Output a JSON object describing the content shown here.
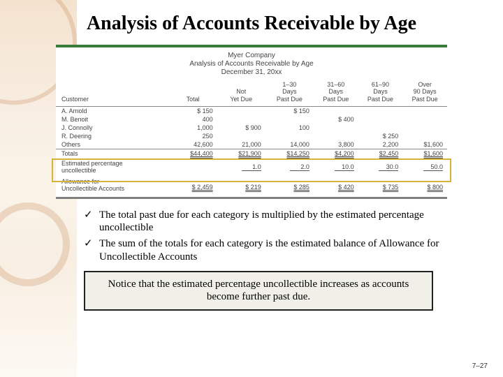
{
  "title": "Analysis of Accounts Receivable by Age",
  "company": "Myer Company",
  "report_name": "Analysis of Accounts Receivable by Age",
  "report_date": "December 31, 20xx",
  "columns": {
    "customer": "Customer",
    "total": "Total",
    "not_yet_due": "Not\nYet Due",
    "d1_30": "1–30\nDays\nPast Due",
    "d31_60": "31–60\nDays\nPast Due",
    "d61_90": "61–90\nDays\nPast Due",
    "over90": "Over\n90 Days\nPast Due"
  },
  "rows": [
    {
      "name": "A. Arnold",
      "total": "$   150",
      "nyd": "",
      "d1": "$   150",
      "d2": "",
      "d3": "",
      "d4": ""
    },
    {
      "name": "M. Benoit",
      "total": "400",
      "nyd": "",
      "d1": "",
      "d2": "$   400",
      "d3": "",
      "d4": ""
    },
    {
      "name": "J. Connolly",
      "total": "1,000",
      "nyd": "$   900",
      "d1": "100",
      "d2": "",
      "d3": "",
      "d4": ""
    },
    {
      "name": "R. Deering",
      "total": "250",
      "nyd": "",
      "d1": "",
      "d2": "",
      "d3": "$   250",
      "d4": ""
    },
    {
      "name": "Others",
      "total": "42,600",
      "nyd": "21,000",
      "d1": "14,000",
      "d2": "3,800",
      "d3": "2,200",
      "d4": "$1,600"
    }
  ],
  "totals_label": "Totals",
  "totals": {
    "total": "$44,400",
    "nyd": "$21,900",
    "d1": "$14,250",
    "d2": "$4,200",
    "d3": "$2,450",
    "d4": "$1,600"
  },
  "pct_label": "Estimated percentage\nuncollectible",
  "pct": {
    "nyd": "1.0",
    "d1": "2.0",
    "d2": "10.0",
    "d3": "30.0",
    "d4": "50.0"
  },
  "allow_label": "Allowance for\nUncollectible Accounts",
  "allow": {
    "total": "$ 2,459",
    "nyd": "$   219",
    "d1": "$   285",
    "d2": "$   420",
    "d3": "$   735",
    "d4": "$   800"
  },
  "bullets": [
    "The total past due for each category is multiplied by the estimated percentage uncollectible",
    "The sum of the totals for each category is the estimated balance of Allowance for Uncollectible Accounts"
  ],
  "notice": "Notice that the estimated percentage uncollectible increases as accounts become further past due.",
  "pagenum": "7–27",
  "palette": {
    "green_bar": "#3a7a3a",
    "highlight": "#d9b23a",
    "bg_tint": "#d28c3c",
    "grey_border": "#808080",
    "notice_bg": "#f0f0e8"
  }
}
